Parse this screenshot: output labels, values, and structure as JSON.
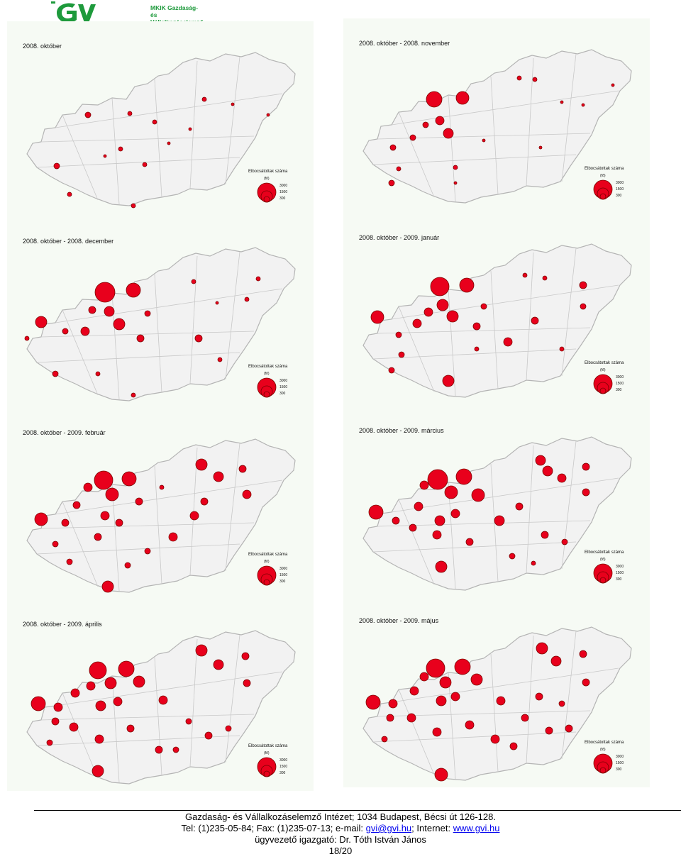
{
  "header": {
    "logo_mark": "GVI",
    "logo_line1": "MKIK Gazdaság- és",
    "logo_line2": "Vállalkozáselemző Intézet",
    "brand_color": "#1e9a3c"
  },
  "legend": {
    "title": "Elbocsátottak száma",
    "unit": "(fő)",
    "values": [
      "3000",
      "1500",
      "300"
    ]
  },
  "colors": {
    "bubble": "#e8001c",
    "bubble_stroke": "#7a0000",
    "map_fill": "#f2f2f2",
    "map_stroke": "#b4b4b4"
  },
  "maps": [
    {
      "title": "2008. október"
    },
    {
      "title": "2008. október - 2008. november"
    },
    {
      "title": "2008. október - 2008. december"
    },
    {
      "title": "2008. október - 2009. január"
    },
    {
      "title": "2008. október - 2009. február"
    },
    {
      "title": "2008. október - 2009. március"
    },
    {
      "title": "2008. október - 2009. április"
    },
    {
      "title": "2008. október - 2009. május"
    }
  ],
  "footer": {
    "line1": "Gazdaság- és Vállalkozáselemző Intézet; 1034 Budapest, Bécsi út 126-128.",
    "tel": "Tel: (1)235-05-84;  Fax: (1)235-07-13;  e-mail: ",
    "email": "gvi@gvi.hu",
    "internet_label": ";  Internet: ",
    "web": "www.gvi.hu",
    "line3": "ügyvezető igazgató: Dr. Tóth István János",
    "page": "18/20"
  }
}
